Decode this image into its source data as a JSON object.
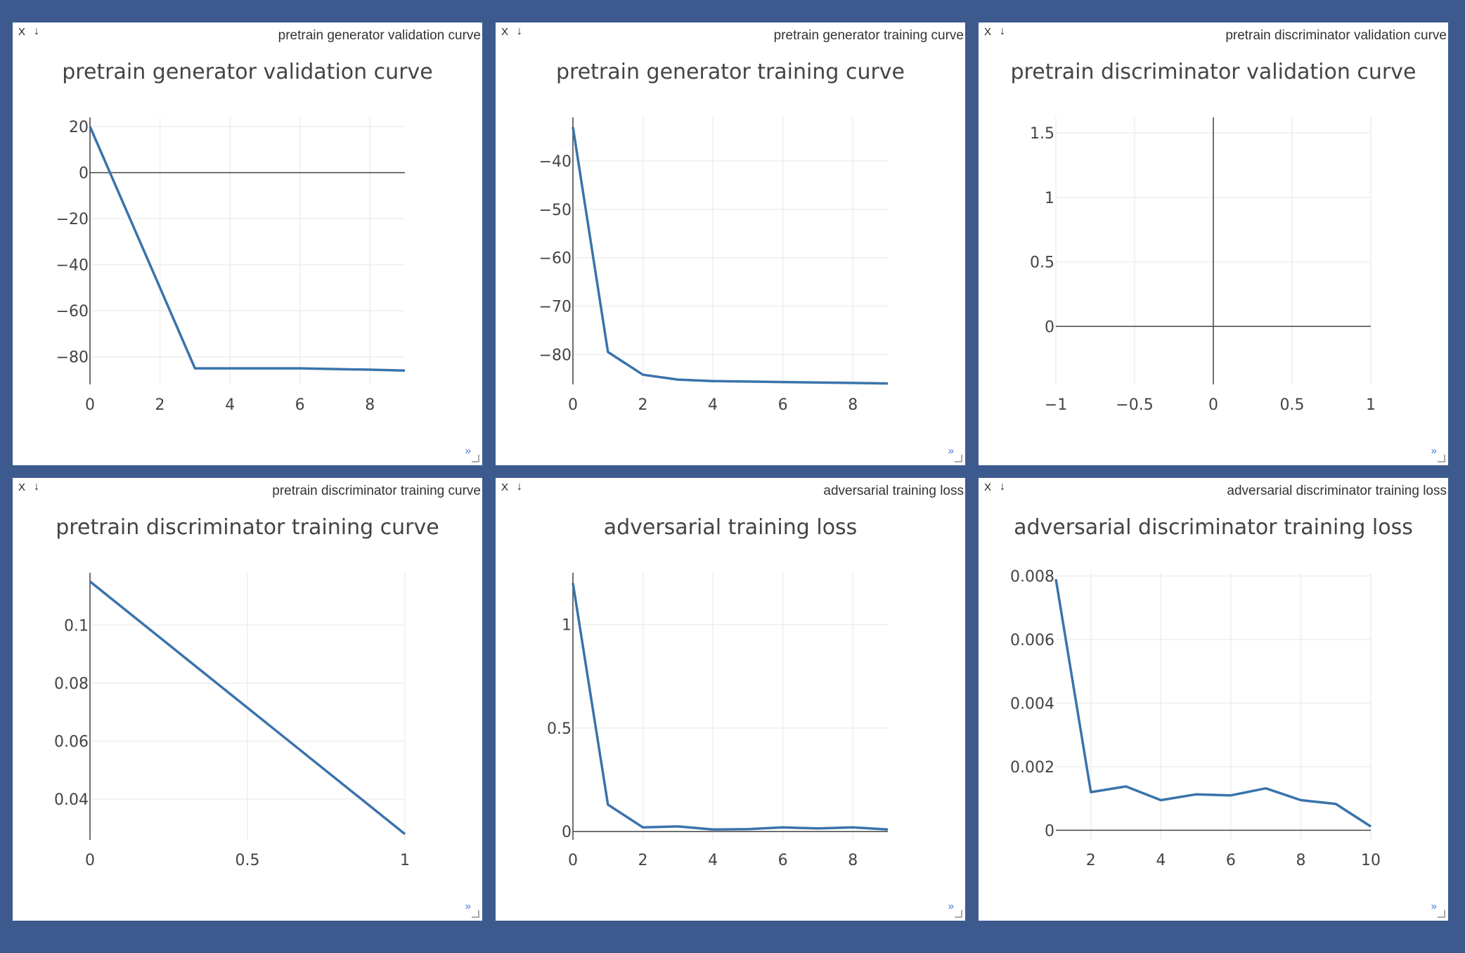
{
  "colors": {
    "background": "#3d5a8f",
    "pane": "#ffffff",
    "line": "#3a73ab",
    "grid": "#eeeeee",
    "axis": "#444444",
    "text": "#444444",
    "expand": "#3a7bd5"
  },
  "icons": {
    "close": "close-icon",
    "download": "download-icon",
    "expand": "expand-icon",
    "resize": "resize-handle-icon"
  },
  "panes": [
    {
      "window_title": "pretrain generator validation curve",
      "close_label": "X",
      "download_label": "↓",
      "expand_label": "»"
    },
    {
      "window_title": "pretrain generator training curve",
      "close_label": "X",
      "download_label": "↓",
      "expand_label": "»"
    },
    {
      "window_title": "pretrain discriminator validation curve",
      "close_label": "X",
      "download_label": "↓",
      "expand_label": "»"
    },
    {
      "window_title": "pretrain discriminator training curve",
      "close_label": "X",
      "download_label": "↓",
      "expand_label": "»"
    },
    {
      "window_title": "adversarial training loss",
      "close_label": "X",
      "download_label": "↓",
      "expand_label": "»"
    },
    {
      "window_title": "adversarial discriminator training loss",
      "close_label": "X",
      "download_label": "↓",
      "expand_label": "»"
    }
  ],
  "chart_data": [
    {
      "type": "line",
      "title": "pretrain generator validation curve",
      "x": [
        0,
        1,
        2,
        3,
        4,
        5,
        6,
        7,
        8,
        9
      ],
      "y": [
        20,
        -15,
        -50,
        -85,
        -85,
        -85,
        -85,
        -85.3,
        -85.6,
        -86
      ],
      "xlim": [
        0,
        9
      ],
      "ylim": [
        -92,
        24
      ],
      "xticks": [
        0,
        2,
        4,
        6,
        8
      ],
      "xtick_labels": [
        "0",
        "2",
        "4",
        "6",
        "8"
      ],
      "yticks": [
        20,
        0,
        -20,
        -40,
        -60,
        -80
      ],
      "ytick_labels": [
        "20",
        "0",
        "−20",
        "−40",
        "−60",
        "−80"
      ],
      "zero_line": "y",
      "grid": true
    },
    {
      "type": "line",
      "title": "pretrain generator training curve",
      "x": [
        0,
        1,
        2,
        3,
        4,
        5,
        6,
        7,
        8,
        9
      ],
      "y": [
        -33,
        -79.5,
        -84.2,
        -85.2,
        -85.5,
        -85.6,
        -85.7,
        -85.8,
        -85.9,
        -86
      ],
      "xlim": [
        0,
        9
      ],
      "ylim": [
        -86.2,
        -31
      ],
      "xticks": [
        0,
        2,
        4,
        6,
        8
      ],
      "xtick_labels": [
        "0",
        "2",
        "4",
        "6",
        "8"
      ],
      "yticks": [
        -40,
        -50,
        -60,
        -70,
        -80
      ],
      "ytick_labels": [
        "−40",
        "−50",
        "−60",
        "−70",
        "−80"
      ],
      "grid": true
    },
    {
      "type": "line",
      "title": "pretrain discriminator validation curve",
      "x": [],
      "y": [],
      "xlim": [
        -1,
        1
      ],
      "ylim": [
        -0.45,
        1.62
      ],
      "xticks": [
        -1,
        -0.5,
        0,
        0.5,
        1
      ],
      "xtick_labels": [
        "−1",
        "−0.5",
        "0",
        "0.5",
        "1"
      ],
      "yticks": [
        1.5,
        1,
        0.5,
        0
      ],
      "ytick_labels": [
        "1.5",
        "1",
        "0.5",
        "0"
      ],
      "zero_line": "xy",
      "grid": true
    },
    {
      "type": "line",
      "title": "pretrain discriminator training curve",
      "x": [
        0,
        1
      ],
      "y": [
        0.115,
        0.028
      ],
      "xlim": [
        0,
        1
      ],
      "ylim": [
        0.026,
        0.118
      ],
      "xticks": [
        0,
        0.5,
        1
      ],
      "xtick_labels": [
        "0",
        "0.5",
        "1"
      ],
      "yticks": [
        0.1,
        0.08,
        0.06,
        0.04
      ],
      "ytick_labels": [
        "0.1",
        "0.08",
        "0.06",
        "0.04"
      ],
      "grid": true
    },
    {
      "type": "line",
      "title": "adversarial training loss",
      "x": [
        0,
        1,
        2,
        3,
        4,
        5,
        6,
        7,
        8,
        9
      ],
      "y": [
        1.2,
        0.13,
        0.02,
        0.025,
        0.01,
        0.012,
        0.02,
        0.015,
        0.02,
        0.01
      ],
      "xlim": [
        0,
        9
      ],
      "ylim": [
        -0.04,
        1.25
      ],
      "xticks": [
        0,
        2,
        4,
        6,
        8
      ],
      "xtick_labels": [
        "0",
        "2",
        "4",
        "6",
        "8"
      ],
      "yticks": [
        1,
        0.5,
        0
      ],
      "ytick_labels": [
        "1",
        "0.5",
        "0"
      ],
      "zero_line": "y",
      "grid": true
    },
    {
      "type": "line",
      "title": "adversarial discriminator training loss",
      "x": [
        1,
        2,
        3,
        4,
        5,
        6,
        7,
        8,
        9,
        10
      ],
      "y": [
        0.0079,
        0.0012,
        0.00138,
        0.00095,
        0.00113,
        0.0011,
        0.00132,
        0.00095,
        0.00083,
        0.00012
      ],
      "xlim": [
        1,
        10
      ],
      "ylim": [
        -0.0003,
        0.0081
      ],
      "xticks": [
        2,
        4,
        6,
        8,
        10
      ],
      "xtick_labels": [
        "2",
        "4",
        "6",
        "8",
        "10"
      ],
      "yticks": [
        0.008,
        0.006,
        0.004,
        0.002,
        0
      ],
      "ytick_labels": [
        "0.008",
        "0.006",
        "0.004",
        "0.002",
        "0"
      ],
      "zero_line": "y",
      "grid": true
    }
  ]
}
